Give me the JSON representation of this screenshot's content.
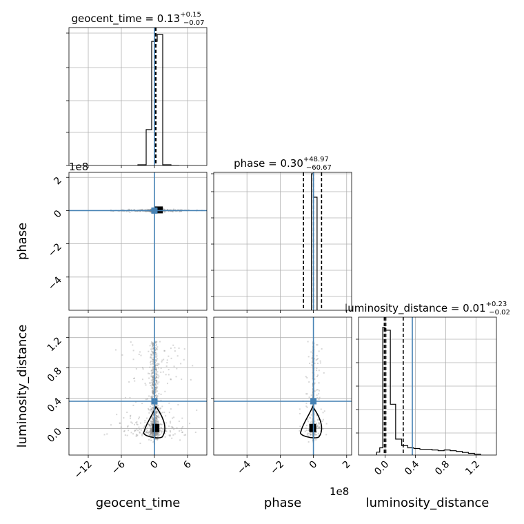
{
  "colors": {
    "truth": "#4682b4",
    "hist": "#000000",
    "scatter": "#8c8c8c",
    "grid": "#b0b0b0"
  },
  "chart_data": {
    "type": "corner",
    "parameters": [
      "geocent_time",
      "phase",
      "luminosity_distance"
    ],
    "titles": {
      "geocent_time": {
        "name": "geocent_time",
        "median": "0.13",
        "plus": "+0.15",
        "minus": "−0.07"
      },
      "phase": {
        "name": "phase",
        "median": "0.30",
        "plus": "+48.97",
        "minus": "−60.67"
      },
      "luminosity_distance": {
        "name": "luminosity_distance",
        "median": "0.01",
        "plus": "+0.23",
        "minus": "−0.02"
      }
    },
    "axis_labels": {
      "x": [
        "geocent_time",
        "phase",
        "luminosity_distance"
      ],
      "y": [
        "phase",
        "luminosity_distance"
      ]
    },
    "offset_labels": {
      "geocent_time_hist": "1e8",
      "phase_x": "1e8"
    },
    "ranges": {
      "geocent_time": [
        -15.5,
        9.5
      ],
      "phase": [
        -600000000.0,
        230000000.0
      ],
      "luminosity_distance": [
        -0.35,
        1.47
      ]
    },
    "ticks": {
      "geocent_time": {
        "values": [
          -12,
          -6,
          0,
          6
        ],
        "labels": [
          "−12",
          "−6",
          "0",
          "6"
        ]
      },
      "phase": {
        "values": [
          -400000000.0,
          -200000000.0,
          0,
          200000000.0
        ],
        "labels": [
          "−4",
          "−2",
          "0",
          "2"
        ]
      },
      "luminosity_distance": {
        "values": [
          0.0,
          0.4,
          0.8,
          1.2
        ],
        "labels": [
          "0.0",
          "0.4",
          "0.8",
          "1.2"
        ]
      }
    },
    "truths": {
      "geocent_time": 0.0,
      "phase": 0.0,
      "luminosity_distance": 0.36
    },
    "quantiles": {
      "geocent_time": [
        0.06,
        0.13,
        0.28
      ],
      "phase": [
        -60000000.0,
        300000.0,
        49000000.0
      ],
      "luminosity_distance": [
        -0.01,
        0.01,
        0.24
      ]
    },
    "histograms": {
      "geocent_time": {
        "edges": [
          -3,
          -1.5,
          -0.5,
          0.5,
          1.5,
          3.0,
          4.5
        ],
        "values": [
          0.005,
          0.26,
          0.9,
          0.95,
          0.005,
          0.0
        ],
        "ymax": 1.0
      },
      "phase": {
        "edges": [
          -12000000.0,
          0,
          22000000.0
        ],
        "values": [
          0.99,
          0.82
        ],
        "ymax": 1.0
      },
      "luminosity_distance": {
        "edges": [
          -0.11,
          -0.07,
          -0.03,
          0.0,
          0.07,
          0.14,
          0.22,
          0.3,
          0.38,
          0.46,
          0.54,
          0.62,
          0.7,
          0.78,
          0.86,
          0.94,
          1.02,
          1.1,
          1.18,
          1.26
        ],
        "values": [
          0.02,
          0.05,
          0.88,
          0.86,
          0.35,
          0.11,
          0.065,
          0.05,
          0.045,
          0.04,
          0.04,
          0.035,
          0.03,
          0.035,
          0.03,
          0.025,
          0.018,
          0.012,
          0.006
        ],
        "ymax": 0.95
      }
    },
    "grid": true
  }
}
